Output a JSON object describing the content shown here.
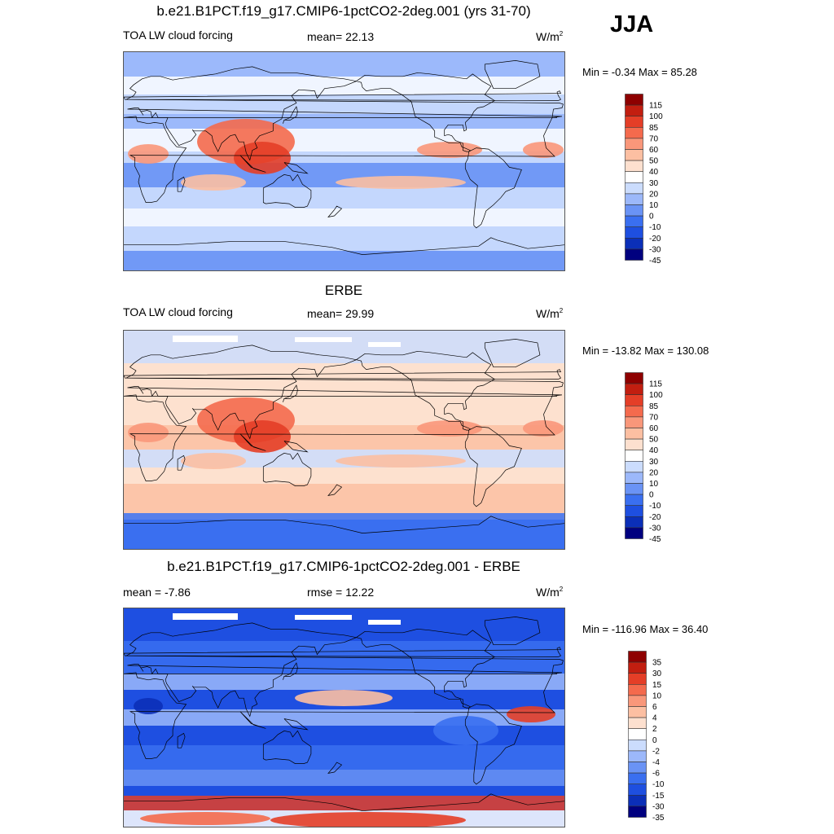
{
  "season": "JJA",
  "colors": {
    "scale_main": [
      "#00007f",
      "#0b2fb8",
      "#1e4fe0",
      "#3a6ff0",
      "#6a93f5",
      "#9cb8fa",
      "#cbdcfd",
      "#ffffff",
      "#fde0cf",
      "#fcbfa2",
      "#f9977a",
      "#f46a4d",
      "#e43e27",
      "#c21e10",
      "#8e0000"
    ],
    "land_outline": "#000000",
    "missing": "#ffffff"
  },
  "panels": [
    {
      "title": "b.e21.B1PCT.f19_g17.CMIP6-1pctCO2-2deg.001 (yrs 31-70)",
      "left_label": "TOA LW cloud forcing",
      "center_label": "mean=  22.13",
      "units_base": "W/m",
      "units_exp": "2",
      "minmax": "Min =  -0.34 Max =  85.28"
    },
    {
      "title": "ERBE",
      "left_label": "TOA LW cloud forcing",
      "center_label": "mean=  29.99",
      "units_base": "W/m",
      "units_exp": "2",
      "minmax": "Min = -13.82 Max = 130.08"
    },
    {
      "title": "b.e21.B1PCT.f19_g17.CMIP6-1pctCO2-2deg.001 - ERBE",
      "left_label": "mean =  -7.86",
      "center_label": "rmse =  12.22",
      "units_base": "W/m",
      "units_exp": "2",
      "minmax": "Min = -116.96 Max =  36.40"
    }
  ],
  "chart_data": [
    {
      "type": "heatmap",
      "title": "b.e21.B1PCT.f19_g17.CMIP6-1pctCO2-2deg.001 (yrs 31-70)",
      "variable": "TOA LW cloud forcing",
      "units": "W/m2",
      "mean": 22.13,
      "min": -0.34,
      "max": 85.28,
      "colorbar_levels": [
        115,
        100,
        85,
        70,
        60,
        50,
        40,
        30,
        20,
        10,
        0,
        -10,
        -20,
        -30,
        -45
      ]
    },
    {
      "type": "heatmap",
      "title": "ERBE",
      "variable": "TOA LW cloud forcing",
      "units": "W/m2",
      "mean": 29.99,
      "min": -13.82,
      "max": 130.08,
      "colorbar_levels": [
        115,
        100,
        85,
        70,
        60,
        50,
        40,
        30,
        20,
        10,
        0,
        -10,
        -20,
        -30,
        -45
      ]
    },
    {
      "type": "heatmap",
      "title": "b.e21.B1PCT.f19_g17.CMIP6-1pctCO2-2deg.001 - ERBE",
      "units": "W/m2",
      "mean": -7.86,
      "rmse": 12.22,
      "min": -116.96,
      "max": 36.4,
      "colorbar_levels": [
        35,
        30,
        15,
        10,
        6,
        4,
        2,
        0,
        -2,
        -4,
        -6,
        -10,
        -15,
        -30,
        -35
      ]
    }
  ]
}
